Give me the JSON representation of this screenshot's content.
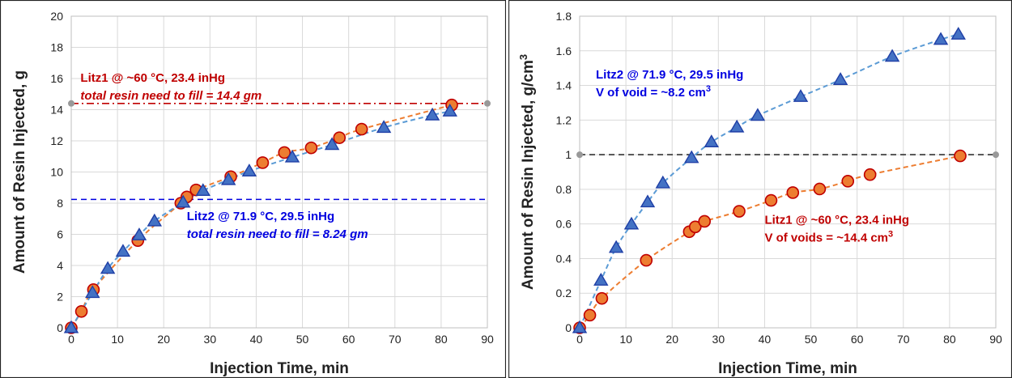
{
  "colors": {
    "litz1": "#c00000",
    "litz1_fit": "#ed7d31",
    "litz1_marker": "#ed7d31",
    "litz2": "#0000e0",
    "litz2_fit": "#5b9bd5",
    "litz2_marker": "#4472c4",
    "reference_dark": "#333333",
    "marker_edge_circle": "#c00000",
    "marker_edge_triangle": "#1f3fa6",
    "grid": "#d9d9d9"
  },
  "chart_data": [
    {
      "type": "scatter",
      "xlabel": "Injection Time, min",
      "ylabel": "Amount of Resin Injected, g",
      "xlim": [
        0,
        90
      ],
      "ylim": [
        0,
        20
      ],
      "xticks": [
        "0",
        "10",
        "20",
        "30",
        "40",
        "50",
        "60",
        "70",
        "80",
        "90"
      ],
      "yticks": [
        "0",
        "2",
        "4",
        "6",
        "8",
        "10",
        "12",
        "14",
        "16",
        "18",
        "20"
      ],
      "grid": true,
      "reference_lines": [
        {
          "y": 14.4,
          "color": "#c00000",
          "style": "dash-dot",
          "end_markers": true
        },
        {
          "y": 8.24,
          "color": "#0000e0",
          "style": "dashed"
        }
      ],
      "annotations": [
        {
          "lines": [
            {
              "text": "Litz1 @ ~60 °C, 23.4 inHg",
              "italic": false
            },
            {
              "text": "total resin need to fill = 14.4 gm",
              "italic": true
            }
          ],
          "color": "#c00000",
          "x": 2,
          "y": 15.8
        },
        {
          "lines": [
            {
              "text": "Litz2 @ 71.9 °C, 29.5 inHg",
              "italic": false
            },
            {
              "text": "total resin need to fill = 8.24 gm",
              "italic": true
            }
          ],
          "color": "#0000e0",
          "x": 25,
          "y": 6.9
        }
      ],
      "series": [
        {
          "marker": "circle",
          "color": "#ed7d31",
          "x": [
            0,
            2.2,
            4.8,
            14.4,
            23.7,
            25,
            27,
            34.5,
            41.4,
            46.1,
            51.9,
            58,
            62.8,
            82.3
          ],
          "y": [
            0,
            1.05,
            2.45,
            5.6,
            8.0,
            8.4,
            8.85,
            9.7,
            10.6,
            11.25,
            11.55,
            12.2,
            12.75,
            14.3
          ]
        },
        {
          "marker": "triangle",
          "color": "#4472c4",
          "x": [
            0,
            4.6,
            7.9,
            11.2,
            14.7,
            18,
            24.2,
            28.5,
            34,
            38.5,
            47.8,
            56.4,
            67.6,
            78.1,
            81.9
          ],
          "y": [
            0,
            2.25,
            3.8,
            4.9,
            5.95,
            6.85,
            8.05,
            8.8,
            9.5,
            10.05,
            10.95,
            11.75,
            12.85,
            13.65,
            13.9
          ]
        }
      ]
    },
    {
      "type": "scatter",
      "xlabel": "Injection Time, min",
      "ylabel": "Amount of Resin Injected, g/cm",
      "ylabel_sup": "3",
      "xlim": [
        0,
        90
      ],
      "ylim": [
        0,
        1.8
      ],
      "xticks": [
        "0",
        "10",
        "20",
        "30",
        "40",
        "50",
        "60",
        "70",
        "80",
        "90"
      ],
      "yticks": [
        "0",
        "0.2",
        "0.4",
        "0.6",
        "0.8",
        "1",
        "1.2",
        "1.4",
        "1.6",
        "1.8"
      ],
      "grid": true,
      "reference_lines": [
        {
          "y": 1.0,
          "color": "#333333",
          "style": "dashed",
          "end_markers": true
        }
      ],
      "annotations": [
        {
          "lines": [
            {
              "text": "Litz2 @ 71.9 °C, 29.5 inHg",
              "italic": false,
              "sup": ""
            },
            {
              "text": "V of void = ~8.2 cm",
              "italic": false,
              "sup": "3"
            }
          ],
          "color": "#0000e0",
          "x": 3.5,
          "y": 1.44
        },
        {
          "lines": [
            {
              "text": "Litz1 @ ~60 °C, 23.4 inHg",
              "italic": false,
              "sup": ""
            },
            {
              "text": "V of voids = ~14.4 cm",
              "italic": false,
              "sup": "3"
            }
          ],
          "color": "#c00000",
          "x": 40,
          "y": 0.6
        }
      ],
      "series": [
        {
          "marker": "circle",
          "color": "#ed7d31",
          "x": [
            0,
            2.2,
            4.8,
            14.4,
            23.7,
            25,
            27,
            34.5,
            41.4,
            46.1,
            51.9,
            58,
            62.8,
            82.3
          ],
          "y": [
            0,
            0.073,
            0.17,
            0.39,
            0.555,
            0.583,
            0.615,
            0.673,
            0.736,
            0.781,
            0.802,
            0.847,
            0.885,
            0.993
          ]
        },
        {
          "marker": "triangle",
          "color": "#4472c4",
          "x": [
            0,
            4.6,
            7.9,
            11.2,
            14.7,
            18,
            24.2,
            28.5,
            34,
            38.5,
            47.8,
            56.4,
            67.6,
            78.1,
            81.9
          ],
          "y": [
            0,
            0.274,
            0.463,
            0.598,
            0.726,
            0.836,
            0.982,
            1.073,
            1.159,
            1.226,
            1.335,
            1.433,
            1.567,
            1.665,
            1.695
          ]
        }
      ]
    }
  ]
}
